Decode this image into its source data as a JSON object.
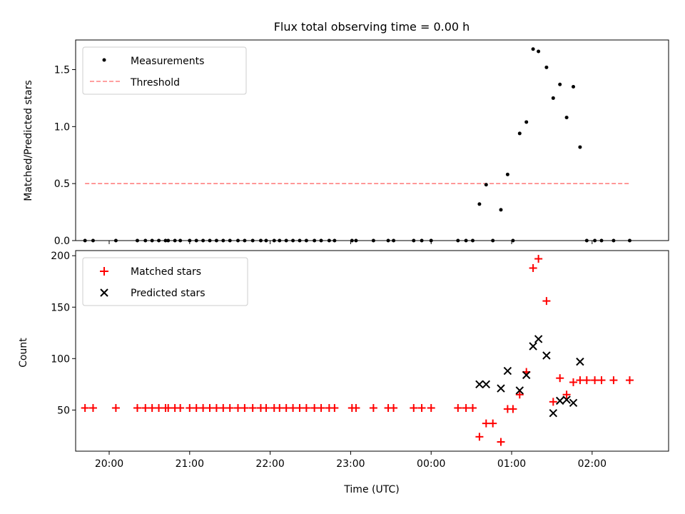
{
  "title": "Flux total observing time = 0.00 h",
  "xlabel": "Time (UTC)",
  "x_tick_labels": [
    "20:00",
    "21:00",
    "22:00",
    "23:00",
    "00:00",
    "01:00",
    "02:00"
  ],
  "chart_data": [
    {
      "type": "scatter",
      "panel": "top",
      "ylabel": "Matched/Predicted stars",
      "xlim": [
        "19:35",
        "02:57"
      ],
      "ylim": [
        0,
        1.76
      ],
      "y_ticks": [
        0.0,
        0.5,
        1.0,
        1.5
      ],
      "legend_position": "upper-left",
      "series": [
        {
          "name": "Measurements",
          "type": "scatter",
          "color": "#000000",
          "x": [
            "19:42",
            "19:48",
            "20:05",
            "20:21",
            "20:27",
            "20:32",
            "20:37",
            "20:42",
            "20:44",
            "20:49",
            "20:53",
            "21:00",
            "21:05",
            "21:10",
            "21:15",
            "21:20",
            "21:25",
            "21:30",
            "21:36",
            "21:41",
            "21:47",
            "21:53",
            "21:57",
            "22:03",
            "22:07",
            "22:12",
            "22:17",
            "22:22",
            "22:27",
            "22:33",
            "22:38",
            "22:44",
            "22:48",
            "23:01",
            "23:04",
            "23:17",
            "23:28",
            "23:32",
            "23:47",
            "23:53",
            "24:00",
            "24:20",
            "24:26",
            "24:31",
            "24:36",
            "24:41",
            "24:46",
            "24:52",
            "24:57",
            "25:01",
            "25:06",
            "25:11",
            "25:16",
            "25:20",
            "25:26",
            "25:31",
            "25:36",
            "25:41",
            "25:46",
            "25:51",
            "25:56",
            "26:02",
            "26:07",
            "26:16",
            "26:28"
          ],
          "y": [
            0,
            0,
            0,
            0,
            0,
            0,
            0,
            0,
            0,
            0,
            0,
            0,
            0,
            0,
            0,
            0,
            0,
            0,
            0,
            0,
            0,
            0,
            0,
            0,
            0,
            0,
            0,
            0,
            0,
            0,
            0,
            0,
            0,
            0,
            0,
            0,
            0,
            0,
            0,
            0,
            0,
            0,
            0,
            0,
            0.32,
            0.49,
            0,
            0.27,
            0.58,
            0,
            0.94,
            1.04,
            1.68,
            1.66,
            1.52,
            1.25,
            1.37,
            1.08,
            1.35,
            0.82,
            0,
            0,
            0,
            0,
            0
          ]
        },
        {
          "name": "Threshold",
          "type": "line",
          "style": "dashed",
          "color": "#ff8080",
          "x": [
            "19:42",
            "26:28"
          ],
          "y": [
            0.5,
            0.5
          ]
        }
      ]
    },
    {
      "type": "scatter",
      "panel": "bottom",
      "ylabel": "Count",
      "xlim": [
        "19:35",
        "02:57"
      ],
      "ylim": [
        10,
        205
      ],
      "y_ticks": [
        50,
        100,
        150,
        200
      ],
      "legend_position": "upper-left",
      "series": [
        {
          "name": "Matched stars",
          "marker": "+",
          "color": "#ff0000",
          "x": [
            "19:42",
            "19:48",
            "20:05",
            "20:21",
            "20:27",
            "20:32",
            "20:37",
            "20:42",
            "20:44",
            "20:49",
            "20:53",
            "21:00",
            "21:05",
            "21:10",
            "21:15",
            "21:20",
            "21:25",
            "21:30",
            "21:36",
            "21:41",
            "21:47",
            "21:53",
            "21:57",
            "22:03",
            "22:07",
            "22:12",
            "22:17",
            "22:22",
            "22:27",
            "22:33",
            "22:38",
            "22:44",
            "22:48",
            "23:01",
            "23:04",
            "23:17",
            "23:28",
            "23:32",
            "23:47",
            "23:53",
            "24:00",
            "24:20",
            "24:26",
            "24:31",
            "24:36",
            "24:41",
            "24:46",
            "24:52",
            "24:57",
            "25:01",
            "25:06",
            "25:11",
            "25:16",
            "25:20",
            "25:26",
            "25:31",
            "25:36",
            "25:41",
            "25:46",
            "25:51",
            "25:56",
            "26:02",
            "26:07",
            "26:16",
            "26:28"
          ],
          "y": [
            52,
            52,
            52,
            52,
            52,
            52,
            52,
            52,
            52,
            52,
            52,
            52,
            52,
            52,
            52,
            52,
            52,
            52,
            52,
            52,
            52,
            52,
            52,
            52,
            52,
            52,
            52,
            52,
            52,
            52,
            52,
            52,
            52,
            52,
            52,
            52,
            52,
            52,
            52,
            52,
            52,
            52,
            52,
            52,
            24,
            37,
            37,
            19,
            51,
            51,
            65,
            87,
            188,
            197,
            156,
            58,
            81,
            65,
            77,
            79,
            79,
            79,
            79,
            79,
            79
          ]
        },
        {
          "name": "Predicted stars",
          "marker": "x",
          "color": "#000000",
          "x": [
            "24:36",
            "24:41",
            "24:52",
            "24:57",
            "25:06",
            "25:11",
            "25:16",
            "25:20",
            "25:26",
            "25:31",
            "25:36",
            "25:41",
            "25:46",
            "25:51"
          ],
          "y": [
            75,
            75,
            71,
            88,
            69,
            84,
            112,
            119,
            103,
            47,
            59,
            60,
            57,
            97
          ]
        }
      ]
    }
  ]
}
